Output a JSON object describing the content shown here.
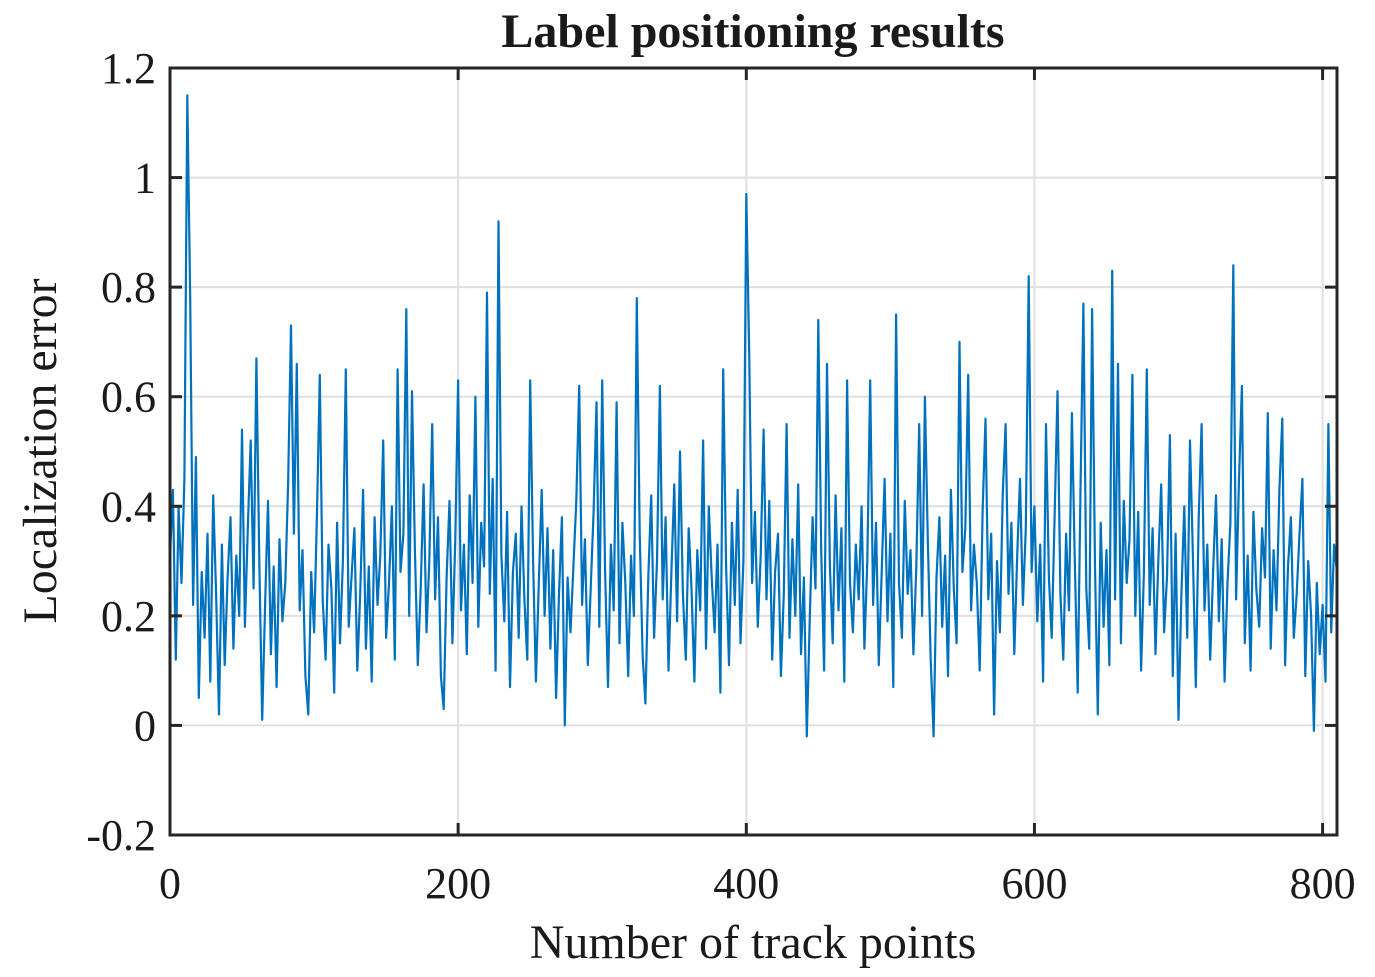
{
  "chart_data": {
    "type": "line",
    "title": "Label positioning results",
    "xlabel": "Number of track points",
    "ylabel": "Localization error",
    "xlim": [
      0,
      810
    ],
    "ylim": [
      -0.2,
      1.2
    ],
    "x_ticks": [
      0,
      200,
      400,
      600,
      800
    ],
    "x_tick_labels": [
      "0",
      "200",
      "400",
      "600",
      "800"
    ],
    "y_ticks": [
      -0.2,
      0,
      0.2,
      0.4,
      0.6,
      0.8,
      1,
      1.2
    ],
    "y_tick_labels": [
      "-0.2",
      "0",
      "0.2",
      "0.4",
      "0.6",
      "0.8",
      "1",
      "1.2"
    ],
    "grid": true,
    "legend": "none",
    "line_color": "#0072BD",
    "axis_color": "#262626",
    "grid_color": "#E0E0E0",
    "x_start": 0,
    "x_step": 2,
    "values": [
      0.31,
      0.43,
      0.12,
      0.4,
      0.26,
      0.45,
      1.15,
      0.78,
      0.22,
      0.49,
      0.05,
      0.28,
      0.16,
      0.35,
      0.08,
      0.42,
      0.24,
      0.02,
      0.33,
      0.11,
      0.27,
      0.38,
      0.14,
      0.31,
      0.2,
      0.54,
      0.18,
      0.36,
      0.52,
      0.25,
      0.67,
      0.3,
      0.01,
      0.22,
      0.41,
      0.13,
      0.29,
      0.07,
      0.34,
      0.19,
      0.26,
      0.44,
      0.73,
      0.35,
      0.66,
      0.21,
      0.32,
      0.09,
      0.02,
      0.28,
      0.17,
      0.39,
      0.64,
      0.23,
      0.12,
      0.33,
      0.25,
      0.06,
      0.37,
      0.15,
      0.3,
      0.65,
      0.18,
      0.27,
      0.36,
      0.1,
      0.24,
      0.43,
      0.14,
      0.29,
      0.08,
      0.38,
      0.22,
      0.31,
      0.52,
      0.16,
      0.26,
      0.4,
      0.12,
      0.65,
      0.28,
      0.35,
      0.76,
      0.2,
      0.61,
      0.32,
      0.11,
      0.25,
      0.44,
      0.17,
      0.3,
      0.55,
      0.23,
      0.38,
      0.09,
      0.03,
      0.27,
      0.41,
      0.15,
      0.34,
      0.63,
      0.21,
      0.33,
      0.13,
      0.42,
      0.26,
      0.6,
      0.18,
      0.37,
      0.29,
      0.79,
      0.24,
      0.45,
      0.1,
      0.92,
      0.31,
      0.19,
      0.39,
      0.07,
      0.28,
      0.35,
      0.16,
      0.4,
      0.23,
      0.12,
      0.63,
      0.3,
      0.08,
      0.26,
      0.43,
      0.2,
      0.36,
      0.14,
      0.32,
      0.05,
      0.24,
      0.38,
      0.0,
      0.27,
      0.17,
      0.29,
      0.41,
      0.62,
      0.22,
      0.34,
      0.11,
      0.25,
      0.39,
      0.59,
      0.18,
      0.63,
      0.28,
      0.07,
      0.33,
      0.21,
      0.59,
      0.15,
      0.37,
      0.26,
      0.09,
      0.31,
      0.2,
      0.78,
      0.35,
      0.13,
      0.04,
      0.27,
      0.42,
      0.16,
      0.3,
      0.62,
      0.23,
      0.38,
      0.1,
      0.28,
      0.44,
      0.19,
      0.5,
      0.24,
      0.12,
      0.36,
      0.25,
      0.08,
      0.32,
      0.21,
      0.52,
      0.14,
      0.4,
      0.27,
      0.17,
      0.33,
      0.06,
      0.65,
      0.29,
      0.11,
      0.37,
      0.22,
      0.43,
      0.15,
      0.3,
      0.97,
      0.68,
      0.26,
      0.39,
      0.18,
      0.31,
      0.54,
      0.23,
      0.41,
      0.12,
      0.28,
      0.35,
      0.09,
      0.24,
      0.55,
      0.16,
      0.34,
      0.2,
      0.44,
      0.13,
      0.27,
      -0.02,
      0.19,
      0.38,
      0.25,
      0.74,
      0.32,
      0.1,
      0.66,
      0.29,
      0.15,
      0.42,
      0.21,
      0.36,
      0.08,
      0.63,
      0.26,
      0.17,
      0.33,
      0.23,
      0.4,
      0.14,
      0.3,
      0.63,
      0.22,
      0.37,
      0.11,
      0.28,
      0.45,
      0.19,
      0.35,
      0.07,
      0.75,
      0.26,
      0.16,
      0.41,
      0.24,
      0.32,
      0.13,
      0.29,
      0.55,
      0.2,
      0.6,
      0.34,
      0.12,
      -0.02,
      0.27,
      0.38,
      0.18,
      0.31,
      0.09,
      0.43,
      0.25,
      0.15,
      0.7,
      0.28,
      0.36,
      0.64,
      0.21,
      0.33,
      0.26,
      0.1,
      0.39,
      0.56,
      0.23,
      0.35,
      0.02,
      0.3,
      0.17,
      0.42,
      0.55,
      0.24,
      0.37,
      0.13,
      0.31,
      0.45,
      0.22,
      0.36,
      0.82,
      0.28,
      0.4,
      0.19,
      0.33,
      0.08,
      0.55,
      0.27,
      0.16,
      0.38,
      0.61,
      0.24,
      0.12,
      0.35,
      0.21,
      0.57,
      0.3,
      0.06,
      0.43,
      0.77,
      0.25,
      0.14,
      0.76,
      0.29,
      0.02,
      0.37,
      0.18,
      0.32,
      0.11,
      0.83,
      0.23,
      0.66,
      0.15,
      0.41,
      0.26,
      0.34,
      0.64,
      0.2,
      0.39,
      0.1,
      0.28,
      0.65,
      0.22,
      0.36,
      0.13,
      0.3,
      0.44,
      0.17,
      0.27,
      0.53,
      0.09,
      0.35,
      0.01,
      0.24,
      0.4,
      0.16,
      0.52,
      0.31,
      0.07,
      0.38,
      0.55,
      0.21,
      0.33,
      0.12,
      0.28,
      0.42,
      0.19,
      0.34,
      0.08,
      0.26,
      0.37,
      0.84,
      0.23,
      0.45,
      0.62,
      0.15,
      0.31,
      0.1,
      0.39,
      0.25,
      0.18,
      0.36,
      0.27,
      0.57,
      0.14,
      0.32,
      0.21,
      0.43,
      0.56,
      0.11,
      0.29,
      0.38,
      0.16,
      0.24,
      0.35,
      0.45,
      0.09,
      0.3,
      0.2,
      -0.01,
      0.26,
      0.13,
      0.22,
      0.08,
      0.55,
      0.17,
      0.33,
      0.28
    ]
  }
}
